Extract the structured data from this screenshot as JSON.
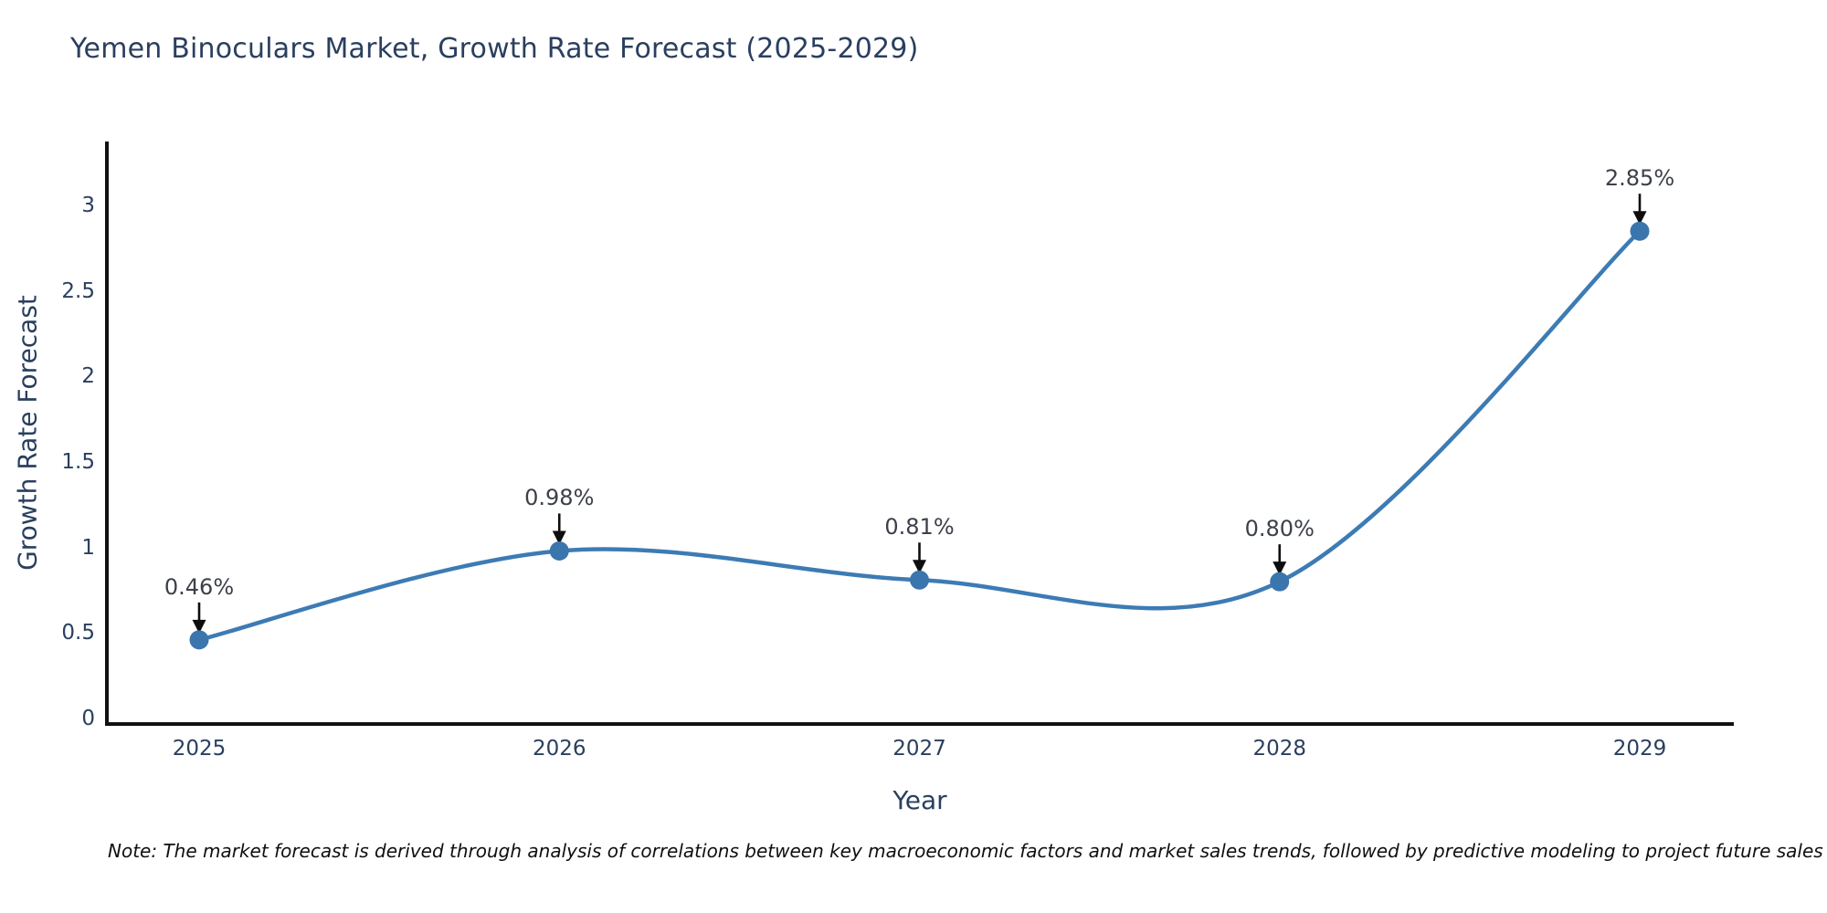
{
  "title": "Yemen Binoculars Market, Growth Rate Forecast (2025-2029)",
  "footnote": "Note: The market forecast is derived through analysis of correlations between key macroeconomic factors and market sales trends, followed by predictive modeling to project future sales",
  "chart_data": {
    "type": "line",
    "title": "Yemen Binoculars Market, Growth Rate Forecast (2025-2029)",
    "xlabel": "Year",
    "ylabel": "Growth Rate Forecast",
    "categories": [
      "2025",
      "2026",
      "2027",
      "2028",
      "2029"
    ],
    "values": [
      0.46,
      0.98,
      0.81,
      0.8,
      2.85
    ],
    "point_labels": [
      "0.46%",
      "0.98%",
      "0.81%",
      "0.80%",
      "2.85%"
    ],
    "y_ticks": [
      0,
      0.5,
      1,
      1.5,
      2,
      2.5,
      3
    ],
    "y_tick_labels": [
      "0",
      "0.5",
      "1",
      "1.5",
      "2",
      "2.5",
      "3"
    ],
    "ylim": [
      0,
      3.37
    ],
    "line_shape": "spline",
    "grid": false,
    "legend": "none",
    "annotations": "black down-arrows from each percentage label to its data point"
  },
  "colors": {
    "background": "#ffffff",
    "title_text": "#2a3f5f",
    "axis_text": "#2a3f5f",
    "axis_line": "#111111",
    "series_line": "#3d7bb4",
    "marker_fill": "#3a76ad",
    "arrow": "#0d0d0d",
    "point_label_text": "#3c4049",
    "footnote_text": "#0f0f0f"
  }
}
